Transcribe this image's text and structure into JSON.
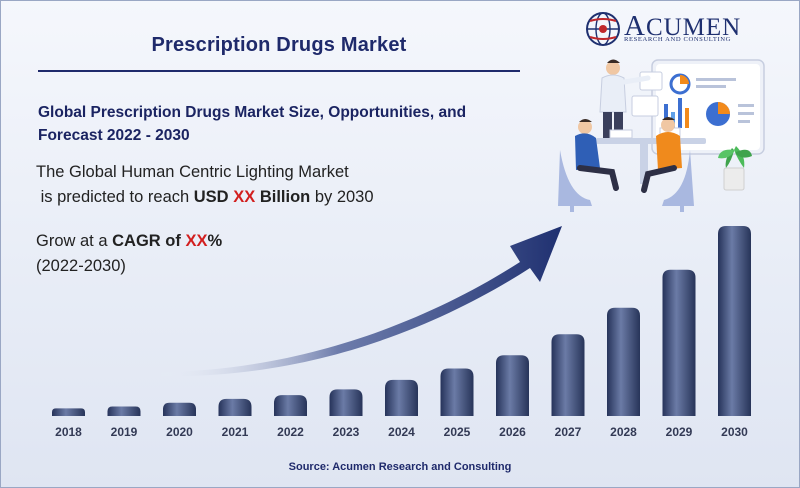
{
  "header": {
    "title": "Prescription Drugs Market",
    "subtitle": "Global Prescription Drugs Market Size, Opportunities, and Forecast 2022 - 2030"
  },
  "description": {
    "line1": "The Global Human Centric Lighting Market",
    "line2_prefix": "is predicted to reach ",
    "line2_usd": "USD",
    "line2_xx": "XX",
    "line2_billion": "Billion",
    "line2_suffix": " by 2030"
  },
  "cagr": {
    "prefix": "Grow at a ",
    "label": "CAGR of",
    "xx": "XX",
    "percent": "%",
    "period": "(2022-2030)"
  },
  "logo": {
    "first_letter": "A",
    "rest": "CUMEN",
    "tagline": "RESEARCH AND CONSULTING",
    "icon": "globe-logo-icon"
  },
  "source": "Source: Acumen Research and Consulting",
  "illustration": {
    "icon": "business-meeting-illustration"
  },
  "colors": {
    "bar": "#35456e",
    "bar_highlight": "#6b7ba6",
    "arrow": "#1f3070",
    "title": "#1f2a6b",
    "highlight_red": "#d21f1f"
  },
  "chart_data": {
    "type": "bar",
    "title": "",
    "xlabel": "",
    "ylabel": "",
    "categories": [
      "2018",
      "2019",
      "2020",
      "2021",
      "2022",
      "2023",
      "2024",
      "2025",
      "2026",
      "2027",
      "2028",
      "2029",
      "2030"
    ],
    "values": [
      4,
      5,
      7,
      9,
      11,
      14,
      19,
      25,
      32,
      43,
      57,
      77,
      100
    ],
    "ylim": [
      0,
      100
    ],
    "grid": false,
    "legend": "none",
    "annotations": [
      "growth-arrow"
    ]
  }
}
